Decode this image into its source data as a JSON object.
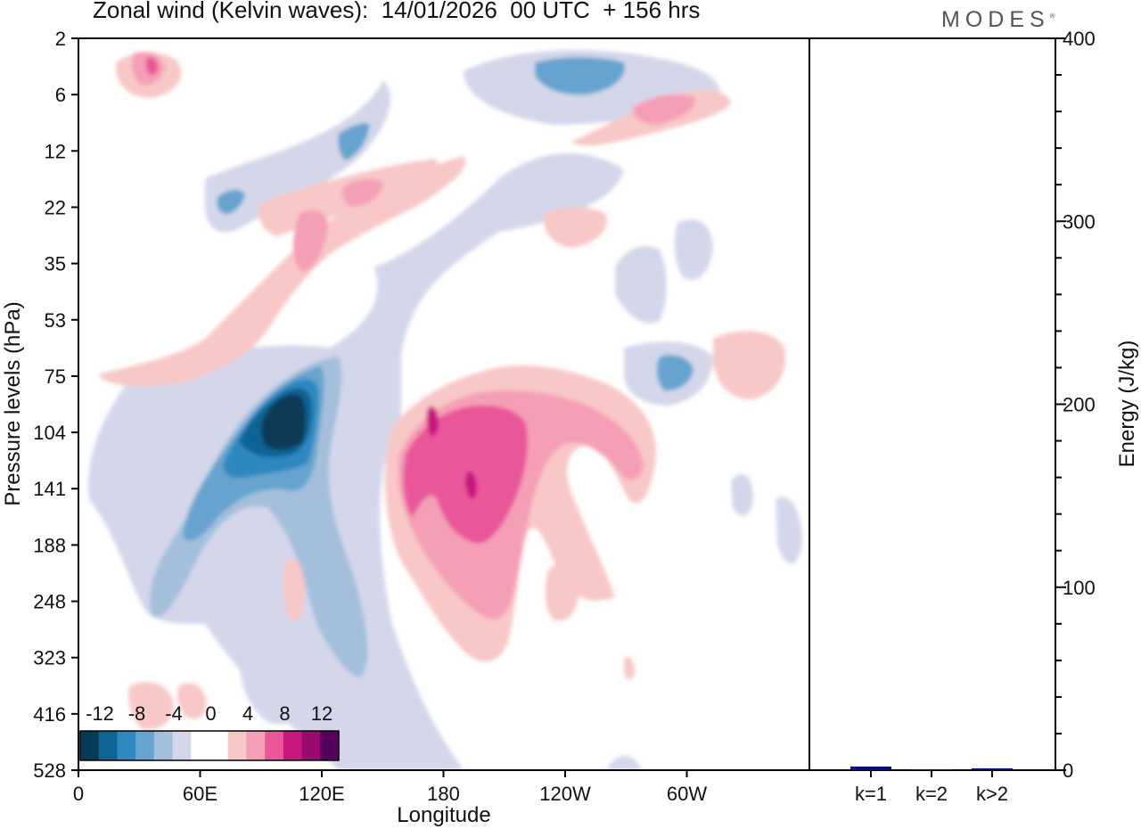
{
  "header": {
    "title": "Zonal wind (Kelvin waves):  14/01/2026  00 UTC  + 156 hrs",
    "logo": "MODES"
  },
  "chart_data": [
    {
      "type": "heatmap",
      "xlabel": "Longitude",
      "ylabel": "Pressure levels (hPa)",
      "x_ticks": [
        "0",
        "60E",
        "120E",
        "180",
        "120W",
        "60W"
      ],
      "y_ticks": [
        "2",
        "6",
        "12",
        "22",
        "35",
        "53",
        "75",
        "104",
        "141",
        "188",
        "248",
        "323",
        "416",
        "528"
      ],
      "colorbar": {
        "labels": [
          "-12",
          "-8",
          "-4",
          "0",
          "4",
          "8",
          "12"
        ],
        "colors": [
          "#073b55",
          "#0d6496",
          "#2f88c0",
          "#66a4cf",
          "#a4bfdc",
          "#d4d7ea",
          "#ffffff",
          "#ffffff",
          "#f8c8c6",
          "#f59fb6",
          "#e9579a",
          "#c8187f",
          "#9a0b70",
          "#56005f"
        ]
      },
      "features": [
        {
          "sign": "negative",
          "peak": -14,
          "center": {
            "lon": 105,
            "p": 104
          }
        },
        {
          "sign": "positive",
          "peak": 10,
          "center": {
            "lon": 190,
            "p": 141
          }
        },
        {
          "sign": "positive",
          "peak": 8,
          "center": {
            "lon": 35,
            "p": 5
          }
        },
        {
          "sign": "positive",
          "peak": 8,
          "center": {
            "lon": 270,
            "p": 8
          }
        }
      ]
    },
    {
      "type": "bar",
      "ylabel": "Energy (J/kg)",
      "ylim": [
        0,
        400
      ],
      "y_ticks": [
        "0",
        "100",
        "200",
        "300",
        "400"
      ],
      "categories": [
        "k=1",
        "k=2",
        "k>2"
      ],
      "values": [
        2,
        0.5,
        1
      ],
      "bar_color": "#0a0a7a"
    }
  ]
}
